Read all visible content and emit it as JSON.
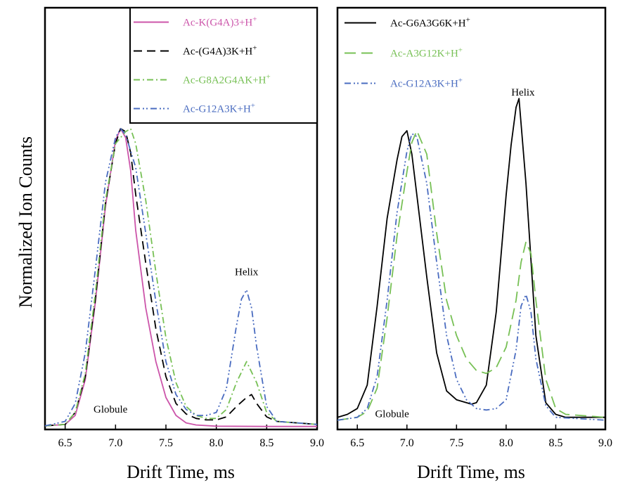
{
  "figure": {
    "ylabel": "Normalized Ion Counts"
  },
  "chart_data": [
    {
      "type": "line",
      "xlabel": "Drift Time, ms",
      "xlim": [
        6.3,
        9.0
      ],
      "xticks": [
        "6.5",
        "7.0",
        "7.5",
        "8.0",
        "8.5",
        "9.0"
      ],
      "xtick_values": [
        6.5,
        7.0,
        7.5,
        8.0,
        8.5,
        9.0
      ],
      "ylim": [
        0,
        1.05
      ],
      "legend_placement": "top-right",
      "annotations": [
        {
          "text": "Helix",
          "x": 8.3,
          "y": 0.51
        },
        {
          "text": "Globule",
          "x": 6.95,
          "y": 0.05
        }
      ],
      "series": [
        {
          "name": "Ac-K(G4A)3+H",
          "sup": "+",
          "color": "#cc55aa",
          "dash": "",
          "x": [
            6.3,
            6.5,
            6.6,
            6.7,
            6.8,
            6.9,
            7.0,
            7.05,
            7.1,
            7.15,
            7.2,
            7.3,
            7.4,
            7.5,
            7.6,
            7.7,
            7.8,
            8.0,
            8.5,
            9.0
          ],
          "y": [
            0.005,
            0.01,
            0.04,
            0.16,
            0.42,
            0.74,
            0.96,
            1.0,
            0.97,
            0.86,
            0.66,
            0.4,
            0.22,
            0.1,
            0.04,
            0.015,
            0.008,
            0.004,
            0.003,
            0.003
          ]
        },
        {
          "name": "Ac-(G4A)3K+H",
          "sup": "+",
          "color": "#000000",
          "dash": "12,7",
          "x": [
            6.3,
            6.5,
            6.6,
            6.7,
            6.8,
            6.9,
            7.0,
            7.05,
            7.1,
            7.15,
            7.2,
            7.3,
            7.4,
            7.5,
            7.6,
            7.7,
            7.8,
            7.9,
            8.0,
            8.1,
            8.2,
            8.3,
            8.35,
            8.4,
            8.5,
            8.6,
            9.0
          ],
          "y": [
            0.005,
            0.01,
            0.05,
            0.17,
            0.43,
            0.75,
            0.95,
            1.0,
            0.99,
            0.92,
            0.78,
            0.55,
            0.33,
            0.17,
            0.08,
            0.045,
            0.03,
            0.025,
            0.025,
            0.035,
            0.07,
            0.1,
            0.11,
            0.08,
            0.035,
            0.02,
            0.01
          ]
        },
        {
          "name": "Ac-G8A2G4AK+H",
          "sup": "+",
          "color": "#77c055",
          "dash": "9,4,2,4",
          "x": [
            6.3,
            6.5,
            6.6,
            6.7,
            6.8,
            6.9,
            7.0,
            7.1,
            7.15,
            7.2,
            7.3,
            7.4,
            7.5,
            7.6,
            7.7,
            7.8,
            7.9,
            8.0,
            8.1,
            8.2,
            8.3,
            8.4,
            8.5,
            8.6,
            9.0
          ],
          "y": [
            0.005,
            0.01,
            0.05,
            0.18,
            0.45,
            0.76,
            0.95,
            0.99,
            1.0,
            0.95,
            0.76,
            0.52,
            0.3,
            0.15,
            0.07,
            0.04,
            0.03,
            0.03,
            0.06,
            0.15,
            0.22,
            0.15,
            0.05,
            0.02,
            0.01
          ]
        },
        {
          "name": "Ac-G12A3K+H",
          "sup": "+",
          "color": "#4a6cc0",
          "dash": "9,4,2,3,2,4",
          "x": [
            6.3,
            6.5,
            6.6,
            6.7,
            6.8,
            6.9,
            7.0,
            7.05,
            7.1,
            7.2,
            7.3,
            7.4,
            7.5,
            7.6,
            7.7,
            7.8,
            7.9,
            8.0,
            8.1,
            8.2,
            8.25,
            8.3,
            8.35,
            8.4,
            8.5,
            8.6,
            9.0
          ],
          "y": [
            0.005,
            0.02,
            0.08,
            0.25,
            0.53,
            0.82,
            0.97,
            1.0,
            0.98,
            0.87,
            0.65,
            0.42,
            0.22,
            0.11,
            0.06,
            0.04,
            0.04,
            0.05,
            0.13,
            0.34,
            0.43,
            0.46,
            0.4,
            0.27,
            0.07,
            0.02,
            0.01
          ]
        }
      ]
    },
    {
      "type": "line",
      "xlabel": "Drift Time, ms",
      "xlim": [
        6.3,
        9.0
      ],
      "xticks": [
        "6.5",
        "7.0",
        "7.5",
        "8.0",
        "8.5",
        "9.0"
      ],
      "xtick_values": [
        6.5,
        7.0,
        7.5,
        8.0,
        8.5,
        9.0
      ],
      "ylim": [
        0,
        1.05
      ],
      "legend_placement": "top-left",
      "annotations": [
        {
          "text": "Helix",
          "x": 8.17,
          "y": 1.12
        },
        {
          "text": "Globule",
          "x": 6.85,
          "y": 0.02
        }
      ],
      "series": [
        {
          "name": "Ac-G6A3G6K+H",
          "sup": "+",
          "color": "#000000",
          "dash": "",
          "x": [
            6.3,
            6.4,
            6.5,
            6.6,
            6.7,
            6.8,
            6.9,
            6.95,
            7.0,
            7.05,
            7.1,
            7.2,
            7.3,
            7.4,
            7.5,
            7.6,
            7.65,
            7.7,
            7.8,
            7.9,
            8.0,
            8.05,
            8.1,
            8.13,
            8.2,
            8.3,
            8.4,
            8.5,
            8.6,
            9.0
          ],
          "y": [
            0.02,
            0.03,
            0.05,
            0.13,
            0.4,
            0.7,
            0.9,
            0.98,
            1.0,
            0.92,
            0.78,
            0.5,
            0.24,
            0.11,
            0.08,
            0.07,
            0.065,
            0.07,
            0.13,
            0.38,
            0.78,
            0.95,
            1.08,
            1.11,
            0.82,
            0.3,
            0.07,
            0.03,
            0.02,
            0.02
          ]
        },
        {
          "name": "Ac-A3G12K+H",
          "sup": "+",
          "color": "#77c055",
          "dash": "16,8",
          "x": [
            6.3,
            6.5,
            6.6,
            6.7,
            6.8,
            6.9,
            7.0,
            7.05,
            7.1,
            7.2,
            7.3,
            7.4,
            7.5,
            7.6,
            7.7,
            7.8,
            7.9,
            8.0,
            8.1,
            8.15,
            8.2,
            8.25,
            8.3,
            8.4,
            8.5,
            8.6,
            9.0
          ],
          "y": [
            0.01,
            0.02,
            0.04,
            0.12,
            0.36,
            0.64,
            0.86,
            0.96,
            1.0,
            0.92,
            0.65,
            0.42,
            0.3,
            0.22,
            0.18,
            0.17,
            0.19,
            0.26,
            0.42,
            0.55,
            0.62,
            0.58,
            0.42,
            0.15,
            0.05,
            0.03,
            0.02
          ]
        },
        {
          "name": "Ac-G12A3K+H",
          "sup": "+",
          "color": "#4a6cc0",
          "dash": "9,4,2,3,2,4",
          "x": [
            6.3,
            6.5,
            6.6,
            6.7,
            6.8,
            6.9,
            7.0,
            7.05,
            7.1,
            7.2,
            7.3,
            7.4,
            7.5,
            7.6,
            7.7,
            7.8,
            7.9,
            8.0,
            8.1,
            8.15,
            8.2,
            8.25,
            8.3,
            8.4,
            8.5,
            9.0
          ],
          "y": [
            0.01,
            0.02,
            0.05,
            0.16,
            0.42,
            0.72,
            0.93,
            0.99,
            0.98,
            0.82,
            0.55,
            0.3,
            0.15,
            0.08,
            0.05,
            0.045,
            0.05,
            0.08,
            0.25,
            0.4,
            0.44,
            0.38,
            0.22,
            0.06,
            0.02,
            0.01
          ]
        }
      ]
    }
  ]
}
